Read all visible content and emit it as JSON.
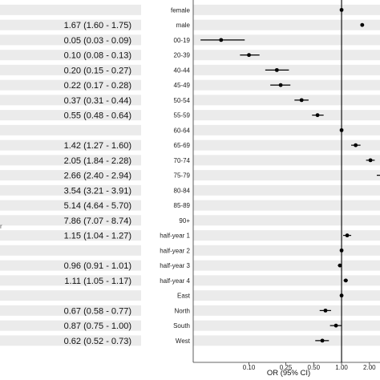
{
  "chart_data": {
    "type": "forest",
    "xlabel": "OR (95% CI)",
    "x_scale": "log",
    "xlim": [
      0.025,
      2.6
    ],
    "reference_value": 1.0,
    "grid": "alternating-row-bands",
    "x_ticks": [
      {
        "value": 0.1,
        "label": "0.10"
      },
      {
        "value": 0.25,
        "label": "0.25"
      },
      {
        "value": 0.5,
        "label": "0.50"
      },
      {
        "value": 1.0,
        "label": "1.00"
      },
      {
        "value": 2.0,
        "label": "2.00"
      }
    ],
    "rows": [
      {
        "label": "female",
        "ci_text": "",
        "or": 1.0,
        "lo": null,
        "hi": null
      },
      {
        "label": "male",
        "ci_text": "1.67 (1.60 - 1.75)",
        "or": 1.67,
        "lo": 1.6,
        "hi": 1.75
      },
      {
        "label": "00-19",
        "ci_text": "0.05 (0.03 - 0.09)",
        "or": 0.05,
        "lo": 0.03,
        "hi": 0.09
      },
      {
        "label": "20-39",
        "ci_text": "0.10 (0.08 - 0.13)",
        "or": 0.1,
        "lo": 0.08,
        "hi": 0.13
      },
      {
        "label": "40-44",
        "ci_text": "0.20 (0.15 - 0.27)",
        "or": 0.2,
        "lo": 0.15,
        "hi": 0.27
      },
      {
        "label": "45-49",
        "ci_text": "0.22 (0.17 - 0.28)",
        "or": 0.22,
        "lo": 0.17,
        "hi": 0.28
      },
      {
        "label": "50-54",
        "ci_text": "0.37 (0.31 - 0.44)",
        "or": 0.37,
        "lo": 0.31,
        "hi": 0.44
      },
      {
        "label": "55-59",
        "ci_text": "0.55 (0.48 - 0.64)",
        "or": 0.55,
        "lo": 0.48,
        "hi": 0.64
      },
      {
        "label": "60-64",
        "ci_text": "",
        "or": 1.0,
        "lo": null,
        "hi": null
      },
      {
        "label": "65-69",
        "ci_text": "1.42 (1.27 - 1.60)",
        "or": 1.42,
        "lo": 1.27,
        "hi": 1.6
      },
      {
        "label": "70-74",
        "ci_text": "2.05 (1.84 - 2.28)",
        "or": 2.05,
        "lo": 1.84,
        "hi": 2.28
      },
      {
        "label": "75-79",
        "ci_text": "2.66 (2.40 - 2.94)",
        "or": 2.66,
        "lo": 2.4,
        "hi": 2.94
      },
      {
        "label": "80-84",
        "ci_text": "3.54 (3.21 - 3.91)",
        "or": 3.54,
        "lo": 3.21,
        "hi": 3.91
      },
      {
        "label": "85-89",
        "ci_text": "5.14 (4.64 - 5.70)",
        "or": 5.14,
        "lo": 4.64,
        "hi": 5.7
      },
      {
        "label": "90+",
        "ci_text": "7.86 (7.07 - 8.74)",
        "or": 7.86,
        "lo": 7.07,
        "hi": 8.74
      },
      {
        "label": "half-year 1",
        "ci_text": "1.15 (1.04 - 1.27)",
        "or": 1.15,
        "lo": 1.04,
        "hi": 1.27
      },
      {
        "label": "half-year 2",
        "ci_text": "",
        "or": 1.0,
        "lo": null,
        "hi": null
      },
      {
        "label": "half-year 3",
        "ci_text": "0.96 (0.91 - 1.01)",
        "or": 0.96,
        "lo": 0.91,
        "hi": 1.01
      },
      {
        "label": "half-year 4",
        "ci_text": "1.11 (1.05 - 1.17)",
        "or": 1.11,
        "lo": 1.05,
        "hi": 1.17
      },
      {
        "label": "East",
        "ci_text": "",
        "or": 1.0,
        "lo": null,
        "hi": null
      },
      {
        "label": "North",
        "ci_text": "0.67 (0.58 - 0.77)",
        "or": 0.67,
        "lo": 0.58,
        "hi": 0.77
      },
      {
        "label": "South",
        "ci_text": "0.87 (0.75 - 1.00)",
        "or": 0.87,
        "lo": 0.75,
        "hi": 1.0
      },
      {
        "label": "West",
        "ci_text": "0.62 (0.52 - 0.73)",
        "or": 0.62,
        "lo": 0.52,
        "hi": 0.73
      }
    ]
  },
  "left_edge_mark": "r"
}
